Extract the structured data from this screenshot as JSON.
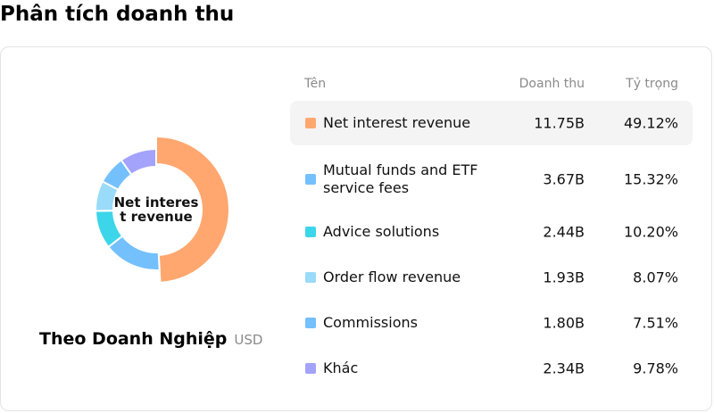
{
  "page_title": "Phân tích doanh thu",
  "segment": {
    "title": "Theo Doanh Nghiệp",
    "unit": "USD"
  },
  "table": {
    "col_name": "Tên",
    "col_revenue": "Doanh thu",
    "col_share": "Tỷ trọng"
  },
  "chart_data": {
    "type": "pie",
    "style": "donut",
    "center_label": "Net interest revenue",
    "unit": "USD",
    "categories": [
      "Net interest revenue",
      "Mutual funds and ETF service fees",
      "Advice solutions",
      "Order flow revenue",
      "Commissions",
      "Khác"
    ],
    "values": [
      49.12,
      15.32,
      10.2,
      8.07,
      7.51,
      9.78
    ],
    "rows": [
      {
        "name": "Net interest revenue",
        "revenue": "11.75B",
        "share": "49.12%",
        "value": 49.12,
        "color": "#ffa76f",
        "active": true
      },
      {
        "name": "Mutual funds and ETF service fees",
        "revenue": "3.67B",
        "share": "15.32%",
        "value": 15.32,
        "color": "#74c0fc",
        "active": false
      },
      {
        "name": "Advice solutions",
        "revenue": "2.44B",
        "share": "10.20%",
        "value": 10.2,
        "color": "#3dd5e9",
        "active": false
      },
      {
        "name": "Order flow revenue",
        "revenue": "1.93B",
        "share": "8.07%",
        "value": 8.07,
        "color": "#99dbf8",
        "active": false
      },
      {
        "name": "Commissions",
        "revenue": "1.80B",
        "share": "7.51%",
        "value": 7.51,
        "color": "#74c0fc",
        "active": false
      },
      {
        "name": "Khác",
        "revenue": "2.34B",
        "share": "9.78%",
        "value": 9.78,
        "color": "#a3a3fc",
        "active": false
      }
    ]
  }
}
